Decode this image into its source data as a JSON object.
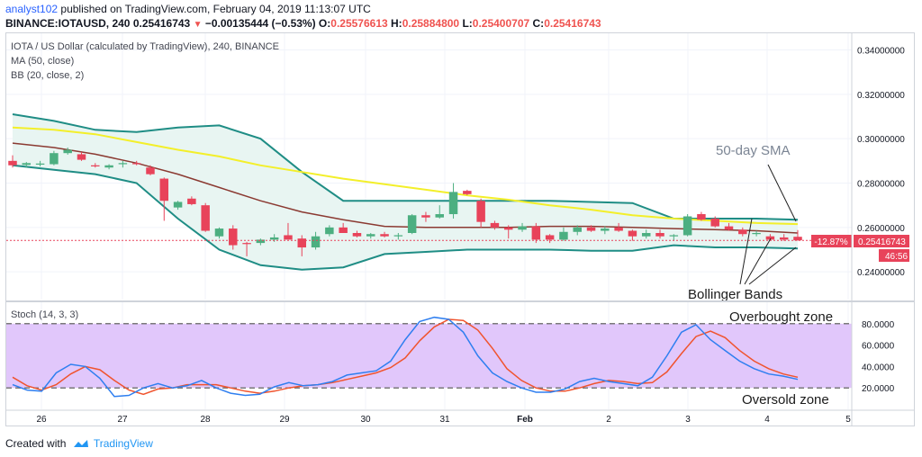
{
  "header": {
    "author": "analyst102",
    "published_text": "published on TradingView.com, February 04, 2019 11:13:07 UTC",
    "symbol": "BINANCE:IOTAUSD, 240",
    "last": "0.25416743",
    "change_arrow": "▼",
    "change": "−0.00135444 (−0.53%)",
    "o_label": "O:",
    "o_value": "0.25576613",
    "h_label": "H:",
    "h_value": "0.25884800",
    "l_label": "L:",
    "l_value": "0.25400707",
    "c_label": "C:",
    "c_value": "0.25416743"
  },
  "legend": {
    "title": "IOTA / US Dollar (calculated by TradingView), 240, BINANCE",
    "ma": "MA (50, close)",
    "bb": "BB (20, close, 2)",
    "stoch": "Stoch (14, 3, 3)"
  },
  "annotations": {
    "sma": "50-day SMA",
    "bollinger": "Bollinger Bands",
    "overbought": "Overbought zone",
    "oversold": "Oversold zone"
  },
  "price_tags": {
    "pct": "-12.87%",
    "price": "0.25416743",
    "timer": "46:56"
  },
  "footer": {
    "created_with": "Created with",
    "brand": "TradingView"
  },
  "colors": {
    "up": "#4caf81",
    "down": "#e8435a",
    "bb_band": "#1f8d85",
    "bb_fill": "#e8f5f2",
    "ma50": "#f3ef2a",
    "bb_mid": "#8b3a32",
    "stoch_k": "#2f7ff0",
    "stoch_d": "#f0542e",
    "stoch_band": "#e1c7fb",
    "last_line": "#e8435a"
  },
  "chart_data": [
    {
      "type": "candlestick",
      "title": "IOTA / US Dollar (calculated by TradingView), 240, BINANCE",
      "x_tick_labels": [
        "26",
        "27",
        "28",
        "29",
        "30",
        "31",
        "Feb",
        "2",
        "3",
        "4",
        "5"
      ],
      "y_tick_labels": [
        "0.24000000",
        "0.26000000",
        "0.28000000",
        "0.30000000",
        "0.32000000",
        "0.34000000"
      ],
      "ylim": [
        0.2275,
        0.3475
      ],
      "candles": [
        [
          0.29,
          0.2925,
          0.287,
          0.288
        ],
        [
          0.2882,
          0.2895,
          0.287,
          0.289
        ],
        [
          0.2885,
          0.29,
          0.2875,
          0.2888
        ],
        [
          0.2885,
          0.2945,
          0.288,
          0.2935
        ],
        [
          0.2935,
          0.296,
          0.2928,
          0.295
        ],
        [
          0.293,
          0.294,
          0.29,
          0.2905
        ],
        [
          0.288,
          0.289,
          0.287,
          0.2875
        ],
        [
          0.287,
          0.2885,
          0.2862,
          0.288
        ],
        [
          0.2885,
          0.29,
          0.287,
          0.289
        ],
        [
          0.289,
          0.29,
          0.288,
          0.2885
        ],
        [
          0.287,
          0.288,
          0.2835,
          0.284
        ],
        [
          0.282,
          0.2825,
          0.263,
          0.272
        ],
        [
          0.269,
          0.272,
          0.268,
          0.2715
        ],
        [
          0.273,
          0.274,
          0.27,
          0.2705
        ],
        [
          0.27,
          0.271,
          0.258,
          0.2585
        ],
        [
          0.256,
          0.26,
          0.255,
          0.2595
        ],
        [
          0.2595,
          0.261,
          0.25,
          0.252
        ],
        [
          0.253,
          0.2535,
          0.247,
          0.2525
        ],
        [
          0.253,
          0.255,
          0.252,
          0.2545
        ],
        [
          0.2545,
          0.257,
          0.2535,
          0.2555
        ],
        [
          0.2565,
          0.262,
          0.2555,
          0.2545
        ],
        [
          0.255,
          0.2565,
          0.247,
          0.251
        ],
        [
          0.251,
          0.258,
          0.25,
          0.256
        ],
        [
          0.257,
          0.261,
          0.256,
          0.26
        ],
        [
          0.26,
          0.262,
          0.2575,
          0.2575
        ],
        [
          0.2575,
          0.2585,
          0.2555,
          0.256
        ],
        [
          0.256,
          0.2575,
          0.255,
          0.257
        ],
        [
          0.257,
          0.258,
          0.2555,
          0.256
        ],
        [
          0.256,
          0.2575,
          0.2545,
          0.2565
        ],
        [
          0.2575,
          0.266,
          0.257,
          0.2655
        ],
        [
          0.2655,
          0.267,
          0.2625,
          0.2645
        ],
        [
          0.2645,
          0.27,
          0.264,
          0.266
        ],
        [
          0.266,
          0.28,
          0.264,
          0.276
        ],
        [
          0.2765,
          0.277,
          0.2745,
          0.275
        ],
        [
          0.272,
          0.273,
          0.26,
          0.2625
        ],
        [
          0.262,
          0.263,
          0.259,
          0.26
        ],
        [
          0.26,
          0.261,
          0.255,
          0.259
        ],
        [
          0.259,
          0.262,
          0.258,
          0.2605
        ],
        [
          0.2605,
          0.262,
          0.253,
          0.2545
        ],
        [
          0.2565,
          0.257,
          0.253,
          0.2545
        ],
        [
          0.2545,
          0.26,
          0.254,
          0.258
        ],
        [
          0.258,
          0.261,
          0.2565,
          0.26
        ],
        [
          0.26,
          0.261,
          0.258,
          0.2585
        ],
        [
          0.2585,
          0.2605,
          0.257,
          0.2595
        ],
        [
          0.26,
          0.262,
          0.258,
          0.2585
        ],
        [
          0.2585,
          0.259,
          0.254,
          0.256
        ],
        [
          0.256,
          0.259,
          0.255,
          0.2575
        ],
        [
          0.2575,
          0.259,
          0.255,
          0.256
        ],
        [
          0.256,
          0.257,
          0.254,
          0.2565
        ],
        [
          0.2565,
          0.266,
          0.256,
          0.265
        ],
        [
          0.266,
          0.267,
          0.263,
          0.2635
        ],
        [
          0.264,
          0.265,
          0.26,
          0.2605
        ],
        [
          0.2605,
          0.262,
          0.2585,
          0.259
        ],
        [
          0.259,
          0.26,
          0.256,
          0.257
        ],
        [
          0.257,
          0.2585,
          0.256,
          0.2575
        ],
        [
          0.256,
          0.257,
          0.254,
          0.2545
        ],
        [
          0.2555,
          0.257,
          0.254,
          0.2545
        ],
        [
          0.2558,
          0.2588,
          0.254,
          0.2542
        ]
      ],
      "series": [
        {
          "name": "MA (50, close)",
          "values": [
            0.305,
            0.304,
            0.302,
            0.2985,
            0.295,
            0.292,
            0.288,
            0.285,
            0.282,
            0.2795,
            0.277,
            0.2745,
            0.2725,
            0.27,
            0.268,
            0.2655,
            0.264,
            0.263,
            0.262,
            0.2615
          ]
        },
        {
          "name": "BB basis",
          "values": [
            0.298,
            0.296,
            0.293,
            0.289,
            0.284,
            0.278,
            0.272,
            0.267,
            0.2635,
            0.2605,
            0.26,
            0.26,
            0.26,
            0.2605,
            0.2605,
            0.26,
            0.2595,
            0.259,
            0.2585,
            0.2575
          ]
        },
        {
          "name": "BB upper",
          "values": [
            0.311,
            0.308,
            0.304,
            0.303,
            0.305,
            0.306,
            0.3,
            0.285,
            0.272,
            0.272,
            0.272,
            0.272,
            0.272,
            0.272,
            0.2715,
            0.271,
            0.264,
            0.264,
            0.264,
            0.2635
          ]
        },
        {
          "name": "BB lower",
          "values": [
            0.288,
            0.286,
            0.284,
            0.28,
            0.264,
            0.25,
            0.243,
            0.241,
            0.242,
            0.248,
            0.249,
            0.25,
            0.25,
            0.25,
            0.2495,
            0.2495,
            0.252,
            0.251,
            0.251,
            0.2505
          ]
        }
      ]
    },
    {
      "type": "line",
      "title": "Stoch (14, 3, 3)",
      "x_tick_labels": [
        "26",
        "27",
        "28",
        "29",
        "30",
        "31",
        "Feb",
        "2",
        "3",
        "4",
        "5"
      ],
      "y_tick_labels": [
        "20.0000",
        "40.0000",
        "60.0000",
        "80.0000"
      ],
      "ylim": [
        0,
        100
      ],
      "bands": [
        20,
        80
      ],
      "series": [
        {
          "name": "%K",
          "values": [
            23,
            18,
            17,
            34,
            42,
            40,
            29,
            12,
            13,
            20,
            24,
            20,
            22,
            27,
            20,
            15,
            13,
            14,
            21,
            25,
            22,
            23,
            26,
            32,
            34,
            36,
            45,
            65,
            82,
            86,
            84,
            72,
            50,
            34,
            26,
            20,
            16,
            16,
            19,
            26,
            29,
            26,
            24,
            22,
            30,
            50,
            72,
            79,
            65,
            55,
            45,
            38,
            33,
            31,
            28
          ]
        },
        {
          "name": "%D",
          "values": [
            30,
            22,
            18,
            23,
            33,
            40,
            37,
            27,
            18,
            14,
            19,
            20,
            23,
            23,
            23,
            20,
            17,
            15,
            17,
            20,
            22,
            23,
            25,
            28,
            31,
            34,
            39,
            48,
            64,
            77,
            84,
            83,
            74,
            57,
            38,
            27,
            20,
            17,
            17,
            20,
            24,
            27,
            26,
            24,
            25,
            35,
            52,
            68,
            73,
            67,
            55,
            45,
            38,
            33,
            30
          ]
        }
      ]
    }
  ]
}
